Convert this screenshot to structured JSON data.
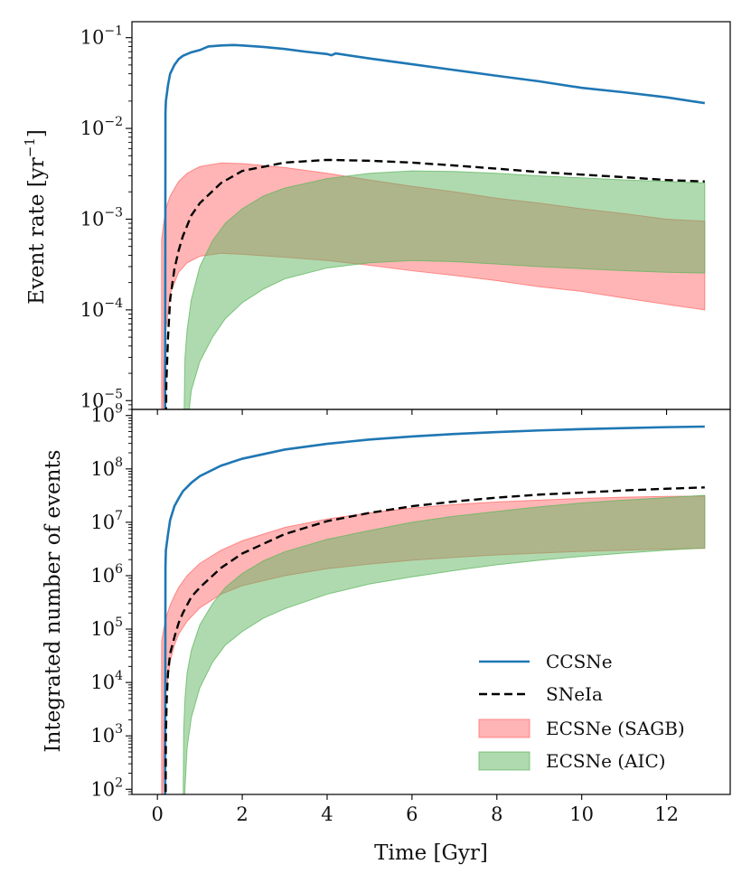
{
  "chart_data": [
    {
      "type": "line",
      "panel": "top",
      "ylabel": "Event rate [yr",
      "ylabel_exp": "−1",
      "ylabel_close": "]",
      "yscale": "log",
      "ylim": [
        8e-06,
        0.15
      ],
      "xlim": [
        -0.6,
        13.5
      ],
      "ytick_values": [
        1e-05,
        0.0001,
        0.001,
        0.01,
        0.1
      ],
      "ytick_exponents": [
        "−5",
        "−4",
        "−3",
        "−2",
        "−1"
      ],
      "ytick_base": "10",
      "series": [
        {
          "name": "CCSNe",
          "kind": "line",
          "color": "#1f77b4",
          "x": [
            0.18,
            0.19,
            0.2,
            0.25,
            0.3,
            0.4,
            0.5,
            0.6,
            0.8,
            1.0,
            1.2,
            1.5,
            1.8,
            2.0,
            2.5,
            3.0,
            3.5,
            4.0,
            4.1,
            4.2,
            5,
            6,
            7,
            8,
            9,
            10,
            11,
            12,
            12.9
          ],
          "y": [
            1e-06,
            0.015,
            0.02,
            0.03,
            0.04,
            0.05,
            0.058,
            0.063,
            0.069,
            0.073,
            0.08,
            0.082,
            0.083,
            0.082,
            0.079,
            0.075,
            0.07,
            0.066,
            0.064,
            0.067,
            0.059,
            0.051,
            0.044,
            0.038,
            0.033,
            0.028,
            0.025,
            0.022,
            0.019
          ]
        },
        {
          "name": "SNeIa",
          "kind": "dashed",
          "color": "#000000",
          "x": [
            0.19,
            0.21,
            0.25,
            0.3,
            0.4,
            0.5,
            0.6,
            0.8,
            1.0,
            1.5,
            2,
            3,
            4,
            5,
            6,
            7,
            8,
            9,
            10,
            11,
            12,
            12.9
          ],
          "y": [
            1e-06,
            1.5e-05,
            5e-05,
            0.00013,
            0.00028,
            0.00045,
            0.00065,
            0.0011,
            0.0015,
            0.0025,
            0.0034,
            0.0042,
            0.0045,
            0.0044,
            0.0042,
            0.0039,
            0.0036,
            0.0033,
            0.0031,
            0.0029,
            0.0027,
            0.0026
          ]
        },
        {
          "name": "ECSNe (SAGB)",
          "kind": "band",
          "color": "#ff6b6b",
          "x": [
            0.1,
            0.15,
            0.2,
            0.3,
            0.5,
            0.7,
            1.0,
            1.5,
            2.0,
            3,
            4,
            5,
            6,
            7,
            8,
            9,
            10,
            11,
            12,
            12.9
          ],
          "upper": [
            0.0006,
            0.0009,
            0.0013,
            0.0018,
            0.0026,
            0.0032,
            0.0038,
            0.00415,
            0.0041,
            0.0037,
            0.0032,
            0.0027,
            0.0023,
            0.002,
            0.0017,
            0.0015,
            0.0013,
            0.00115,
            0.001,
            0.00095
          ],
          "lower": [
            1e-06,
            2e-05,
            6e-05,
            0.00015,
            0.00026,
            0.00033,
            0.00039,
            0.00042,
            0.00041,
            0.00038,
            0.00035,
            0.00031,
            0.00027,
            0.00024,
            0.00021,
            0.00018,
            0.00016,
            0.000135,
            0.000115,
            0.0001
          ]
        },
        {
          "name": "ECSNe (AIC)",
          "kind": "band",
          "color": "#5fb55f",
          "x": [
            0.6,
            0.65,
            0.7,
            0.8,
            1.0,
            1.3,
            1.6,
            2.0,
            2.5,
            3,
            4,
            5,
            6,
            7,
            8,
            9,
            10,
            11,
            12,
            12.9
          ],
          "upper": [
            1e-06,
            3e-05,
            6e-05,
            0.00013,
            0.0003,
            0.00058,
            0.0009,
            0.0013,
            0.0018,
            0.0022,
            0.0028,
            0.0032,
            0.0034,
            0.00335,
            0.0032,
            0.003,
            0.00285,
            0.0027,
            0.0026,
            0.0025
          ]
        },
        {
          "name": "ECSNe (AIC) lower",
          "kind": "band-lower",
          "x": [
            0.6,
            0.65,
            0.7,
            0.8,
            1.0,
            1.3,
            1.6,
            2.0,
            2.5,
            3,
            4,
            5,
            6,
            7,
            8,
            9,
            10,
            11,
            12,
            12.9
          ],
          "lower": [
            1e-06,
            1e-06,
            5e-06,
            1.3e-05,
            2.7e-05,
            5e-05,
            8e-05,
            0.00012,
            0.00017,
            0.00022,
            0.00029,
            0.00033,
            0.00035,
            0.00034,
            0.00032,
            0.0003,
            0.000285,
            0.00027,
            0.00026,
            0.000255
          ]
        }
      ]
    },
    {
      "type": "line",
      "panel": "bottom",
      "ylabel": "Integrated number of events",
      "xlabel": "Time [Gyr]",
      "yscale": "log",
      "ylim": [
        80,
        1300000000.0
      ],
      "xlim": [
        -0.6,
        13.5
      ],
      "xticks": [
        "0",
        "2",
        "4",
        "6",
        "8",
        "10",
        "12"
      ],
      "xtick_values": [
        0,
        2,
        4,
        6,
        8,
        10,
        12
      ],
      "ytick_values": [
        100.0,
        1000.0,
        10000.0,
        100000.0,
        1000000.0,
        10000000.0,
        100000000.0,
        1000000000.0
      ],
      "ytick_exponents": [
        "2",
        "3",
        "4",
        "5",
        "6",
        "7",
        "8",
        "9"
      ],
      "ytick_base": "10",
      "series": [
        {
          "name": "CCSNe",
          "kind": "line",
          "color": "#1f77b4",
          "x": [
            0.18,
            0.19,
            0.2,
            0.25,
            0.3,
            0.4,
            0.5,
            0.6,
            0.8,
            1.0,
            1.5,
            2,
            3,
            4,
            5,
            6,
            7,
            8,
            9,
            10,
            11,
            12,
            12.9
          ],
          "y": [
            10,
            1500000.0,
            3000000.0,
            6000000.0,
            11000000.0,
            20000000.0,
            28000000.0,
            38000000.0,
            55000000.0,
            73000000.0,
            115000000.0,
            155000000.0,
            230000000.0,
            295000000.0,
            355000000.0,
            405000000.0,
            450000000.0,
            490000000.0,
            525000000.0,
            555000000.0,
            580000000.0,
            605000000.0,
            620000000.0
          ]
        },
        {
          "name": "SNeIa",
          "kind": "dashed",
          "color": "#000000",
          "x": [
            0.19,
            0.2,
            0.22,
            0.25,
            0.3,
            0.4,
            0.5,
            0.6,
            0.8,
            1.0,
            1.5,
            2,
            3,
            4,
            5,
            6,
            7,
            8,
            9,
            10,
            11,
            12,
            12.9
          ],
          "y": [
            10,
            1000.0,
            5000.0,
            15000.0,
            35000.0,
            70000.0,
            130000.0,
            200000.0,
            400000.0,
            600000.0,
            1400000.0,
            2600000.0,
            6000000.0,
            10500000.0,
            15000000.0,
            20000000.0,
            24500000.0,
            29000000.0,
            33000000.0,
            36000000.0,
            39500000.0,
            42500000.0,
            45000000.0
          ]
        },
        {
          "name": "ECSNe (SAGB)",
          "kind": "band",
          "color": "#ff6b6b",
          "x": [
            0.1,
            0.15,
            0.2,
            0.3,
            0.4,
            0.5,
            0.7,
            1.0,
            1.5,
            2,
            3,
            4,
            5,
            6,
            7,
            8,
            9,
            10,
            11,
            12,
            12.9
          ],
          "upper": [
            60000.0,
            100000.0,
            160000.0,
            280000.0,
            420000.0,
            600000.0,
            1000000.0,
            1700000.0,
            3000000.0,
            4500000.0,
            8000000.0,
            11500000.0,
            15000000.0,
            18500000.0,
            21500000.0,
            24000000.0,
            26000000.0,
            28000000.0,
            29500000.0,
            30500000.0,
            31000000.0
          ],
          "lower": [
            10,
            500,
            6000.0,
            25000.0,
            50000.0,
            80000.0,
            140000.0,
            250000.0,
            450000.0,
            650000.0,
            1000000.0,
            1350000.0,
            1650000.0,
            1950000.0,
            2200000.0,
            2450000.0,
            2650000.0,
            2850000.0,
            3000000.0,
            3150000.0,
            3250000.0
          ]
        },
        {
          "name": "ECSNe (AIC)",
          "kind": "band",
          "color": "#5fb55f",
          "x": [
            0.6,
            0.62,
            0.65,
            0.7,
            0.8,
            1.0,
            1.3,
            1.6,
            2.0,
            2.5,
            3,
            4,
            5,
            6,
            7,
            8,
            9,
            10,
            11,
            12,
            12.9
          ],
          "upper": [
            10,
            1300.0,
            5000.0,
            15000.0,
            40000.0,
            120000.0,
            300000.0,
            600000.0,
            1100000.0,
            1900000.0,
            2800000.0,
            4800000.0,
            7000000.0,
            10000000.0,
            13000000.0,
            16000000.0,
            19500000.0,
            23000000.0,
            26000000.0,
            29000000.0,
            32000000.0
          ],
          "lower": [
            10,
            10,
            100,
            600,
            2200.0,
            8000.0,
            24000.0,
            50000.0,
            90000.0,
            160000.0,
            240000.0,
            450000.0,
            700000.0,
            950000.0,
            1250000.0,
            1600000.0,
            1950000.0,
            2300000.0,
            2650000.0,
            3000000.0,
            3300000.0
          ]
        }
      ]
    }
  ],
  "legend": {
    "placement": "lower-right",
    "items": [
      {
        "label": "CCSNe",
        "kind": "line",
        "color": "#1f77b4"
      },
      {
        "label": "SNeIa",
        "kind": "dashed",
        "color": "#000000"
      },
      {
        "label": "ECSNe (SAGB)",
        "kind": "patch",
        "color": "#ff6b6b"
      },
      {
        "label": "ECSNe (AIC)",
        "kind": "patch",
        "color": "#5fb55f"
      }
    ]
  }
}
